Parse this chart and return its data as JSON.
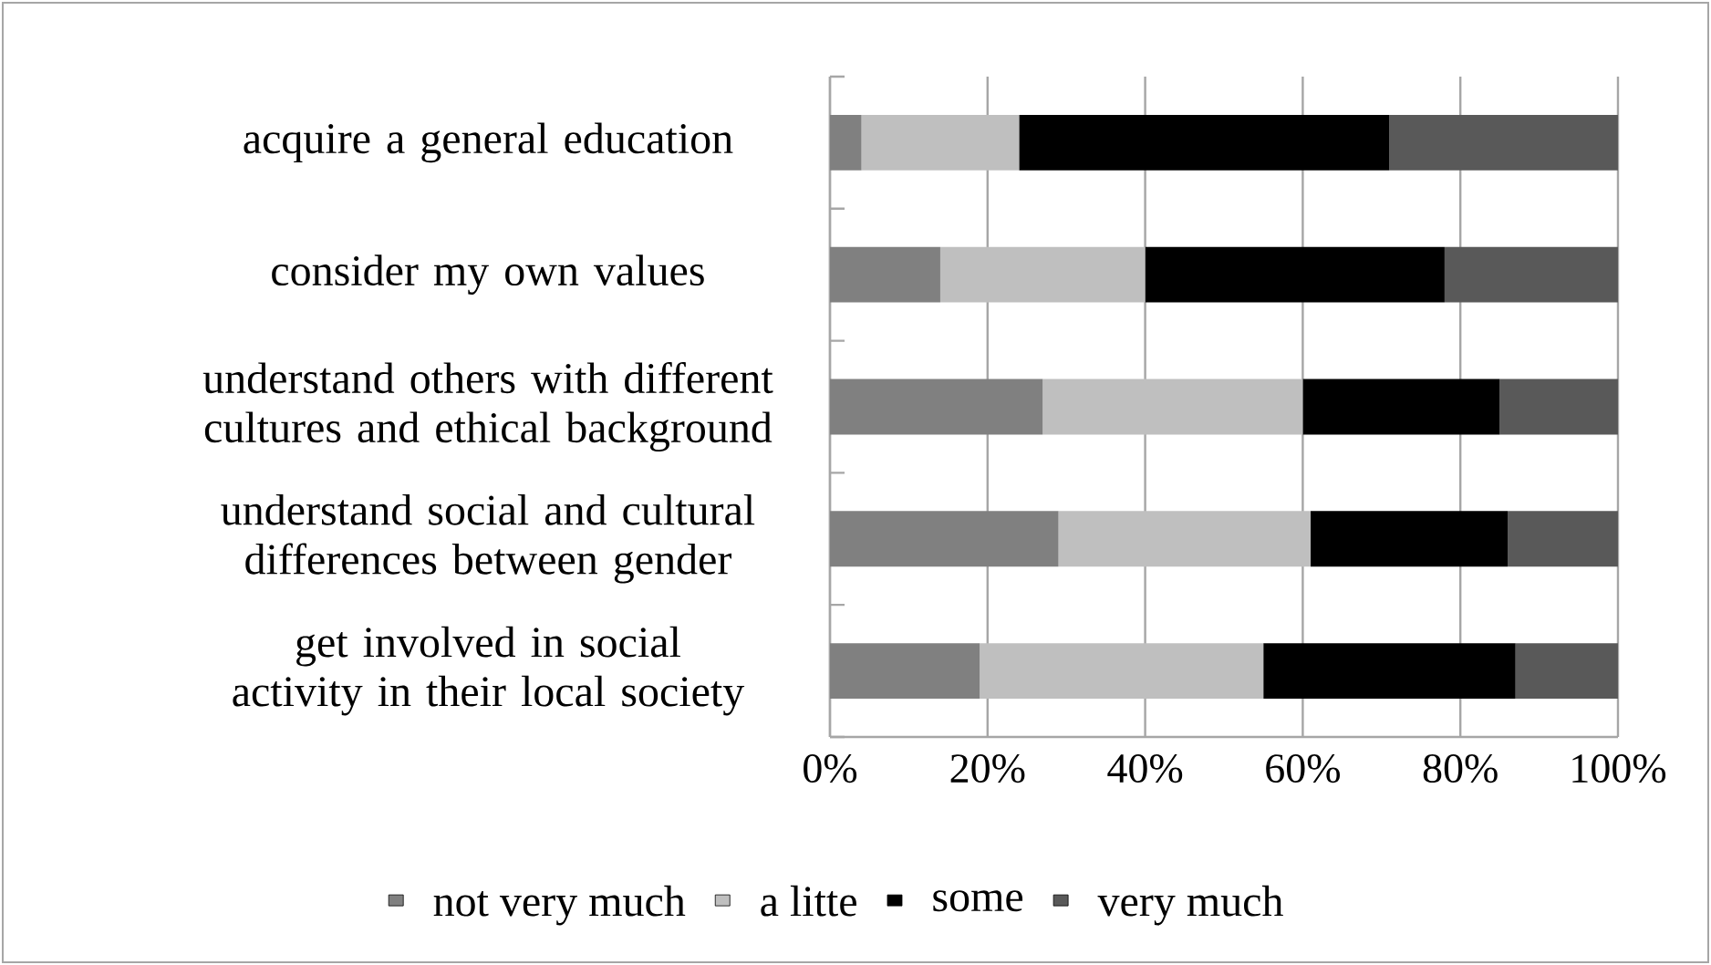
{
  "chart_data": {
    "type": "bar",
    "orientation": "horizontal",
    "stacked": true,
    "categories": [
      "acquire a general education",
      "consider my own values",
      "understand others with different cultures and ethical background",
      "understand social and cultural differences between gender",
      "get involved in social activity in their local society"
    ],
    "series": [
      {
        "name": "not very much",
        "color": "#808080",
        "values": [
          4,
          14,
          27,
          29,
          19
        ]
      },
      {
        "name": "a litte",
        "color": "#bfbfbf",
        "values": [
          20,
          26,
          33,
          32,
          36
        ]
      },
      {
        "name": "some",
        "color": "#000000",
        "values": [
          47,
          38,
          25,
          25,
          32
        ]
      },
      {
        "name": "very much",
        "color": "#595959",
        "values": [
          29,
          22,
          15,
          14,
          13
        ]
      }
    ],
    "xlim": [
      0,
      100
    ],
    "xticks": [
      {
        "value": 0,
        "label": "0%"
      },
      {
        "value": 20,
        "label": "20%"
      },
      {
        "value": 40,
        "label": "40%"
      },
      {
        "value": 60,
        "label": "60%"
      },
      {
        "value": 80,
        "label": "80%"
      },
      {
        "value": 100,
        "label": "100%"
      }
    ],
    "grid": "x",
    "legend": "bottom"
  }
}
